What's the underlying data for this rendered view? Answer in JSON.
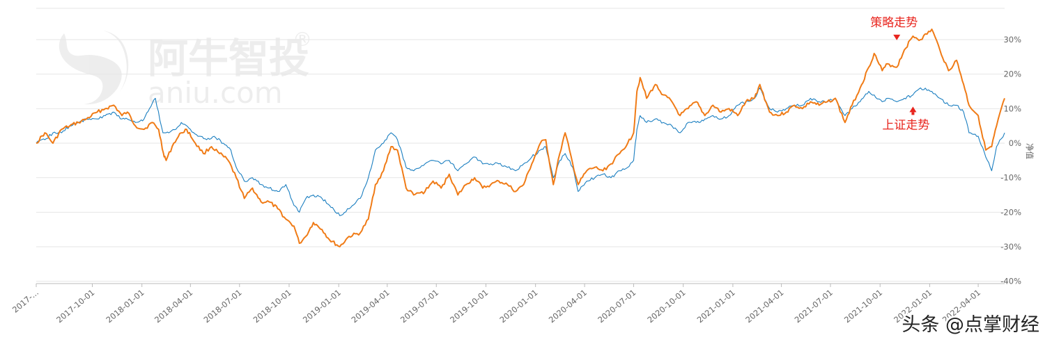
{
  "watermark": {
    "brand": "阿牛智投",
    "registered": "®",
    "domain": "aniu.com"
  },
  "overlay_text": "头条 @点掌财经",
  "chart_data": {
    "type": "line",
    "title": "",
    "xlabel": "",
    "ylabel": "净值",
    "ylim": [
      -40,
      30
    ],
    "y_ticks": [
      30,
      20,
      10,
      0,
      -10,
      -20,
      -30,
      -40
    ],
    "y_tick_labels": [
      "30%",
      "20%",
      "10%",
      "0%",
      "-10%",
      "-20%",
      "-30%",
      "-40%"
    ],
    "x_range": [
      "2017-06-19",
      "2022-05-20"
    ],
    "x_ticks": [
      {
        "date": "2017-06-19",
        "label": "2017-..."
      },
      {
        "date": "2017-10-01",
        "label": "2017-10-01"
      },
      {
        "date": "2018-01-01",
        "label": "2018-01-01"
      },
      {
        "date": "2018-04-01",
        "label": "2018-04-01"
      },
      {
        "date": "2018-07-01",
        "label": "2018-07-01"
      },
      {
        "date": "2018-10-01",
        "label": "2018-10-01"
      },
      {
        "date": "2019-01-01",
        "label": "2019-01-01"
      },
      {
        "date": "2019-04-01",
        "label": "2019-04-01"
      },
      {
        "date": "2019-07-01",
        "label": "2019-07-01"
      },
      {
        "date": "2019-10-01",
        "label": "2019-10-01"
      },
      {
        "date": "2020-01-01",
        "label": "2020-01-01"
      },
      {
        "date": "2020-04-01",
        "label": "2020-04-01"
      },
      {
        "date": "2020-07-01",
        "label": "2020-07-01"
      },
      {
        "date": "2020-10-01",
        "label": "2020-10-01"
      },
      {
        "date": "2021-01-01",
        "label": "2021-01-01"
      },
      {
        "date": "2021-04-01",
        "label": "2021-04-01"
      },
      {
        "date": "2021-07-01",
        "label": "2021-07-01"
      },
      {
        "date": "2021-10-01",
        "label": "2021-10-01"
      },
      {
        "date": "2022-01-01",
        "label": "2022-01-01"
      },
      {
        "date": "2022-04-01",
        "label": "2022-04-01"
      }
    ],
    "grid": true,
    "series": [
      {
        "name": "策略走势",
        "color": "#f07b16",
        "points": [
          [
            "2017-06-19",
            0
          ],
          [
            "2017-07-05",
            3
          ],
          [
            "2017-07-20",
            0
          ],
          [
            "2017-08-05",
            4
          ],
          [
            "2017-08-20",
            5
          ],
          [
            "2017-09-05",
            6
          ],
          [
            "2017-09-20",
            7
          ],
          [
            "2017-10-10",
            9
          ],
          [
            "2017-10-25",
            10
          ],
          [
            "2017-11-10",
            11
          ],
          [
            "2017-11-25",
            8
          ],
          [
            "2017-12-05",
            9
          ],
          [
            "2017-12-20",
            5
          ],
          [
            "2018-01-05",
            4
          ],
          [
            "2018-01-20",
            6
          ],
          [
            "2018-02-01",
            4
          ],
          [
            "2018-02-10",
            -3
          ],
          [
            "2018-02-15",
            -5
          ],
          [
            "2018-03-01",
            0
          ],
          [
            "2018-03-15",
            3
          ],
          [
            "2018-03-25",
            4
          ],
          [
            "2018-04-10",
            0
          ],
          [
            "2018-04-25",
            -3
          ],
          [
            "2018-05-10",
            -1
          ],
          [
            "2018-05-25",
            -3
          ],
          [
            "2018-06-10",
            -5
          ],
          [
            "2018-06-25",
            -10
          ],
          [
            "2018-07-10",
            -16
          ],
          [
            "2018-07-25",
            -13
          ],
          [
            "2018-08-10",
            -17
          ],
          [
            "2018-08-25",
            -17
          ],
          [
            "2018-09-10",
            -19
          ],
          [
            "2018-09-25",
            -22
          ],
          [
            "2018-10-10",
            -24
          ],
          [
            "2018-10-20",
            -29
          ],
          [
            "2018-11-01",
            -27
          ],
          [
            "2018-11-15",
            -23
          ],
          [
            "2018-12-01",
            -25
          ],
          [
            "2018-12-15",
            -28
          ],
          [
            "2019-01-03",
            -30
          ],
          [
            "2019-01-20",
            -27
          ],
          [
            "2019-02-10",
            -26
          ],
          [
            "2019-02-25",
            -22
          ],
          [
            "2019-03-10",
            -12
          ],
          [
            "2019-03-25",
            -8
          ],
          [
            "2019-04-08",
            -1
          ],
          [
            "2019-04-20",
            -2
          ],
          [
            "2019-05-06",
            -13
          ],
          [
            "2019-05-20",
            -15
          ],
          [
            "2019-06-10",
            -14
          ],
          [
            "2019-06-25",
            -11
          ],
          [
            "2019-07-10",
            -13
          ],
          [
            "2019-07-25",
            -9
          ],
          [
            "2019-08-10",
            -15
          ],
          [
            "2019-08-25",
            -12
          ],
          [
            "2019-09-10",
            -10
          ],
          [
            "2019-09-25",
            -13
          ],
          [
            "2019-10-10",
            -12
          ],
          [
            "2019-10-25",
            -11
          ],
          [
            "2019-11-10",
            -12
          ],
          [
            "2019-11-25",
            -14
          ],
          [
            "2019-12-10",
            -12
          ],
          [
            "2019-12-25",
            -6
          ],
          [
            "2020-01-10",
            0
          ],
          [
            "2020-01-20",
            1
          ],
          [
            "2020-02-03",
            -12
          ],
          [
            "2020-02-15",
            -3
          ],
          [
            "2020-02-25",
            3
          ],
          [
            "2020-03-10",
            -6
          ],
          [
            "2020-03-20",
            -12
          ],
          [
            "2020-04-05",
            -8
          ],
          [
            "2020-04-20",
            -7
          ],
          [
            "2020-05-05",
            -8
          ],
          [
            "2020-05-20",
            -6
          ],
          [
            "2020-06-05",
            -3
          ],
          [
            "2020-06-20",
            0
          ],
          [
            "2020-07-01",
            3
          ],
          [
            "2020-07-07",
            15
          ],
          [
            "2020-07-13",
            19
          ],
          [
            "2020-07-25",
            13
          ],
          [
            "2020-08-10",
            17
          ],
          [
            "2020-08-25",
            14
          ],
          [
            "2020-09-10",
            12
          ],
          [
            "2020-09-25",
            8
          ],
          [
            "2020-10-10",
            10
          ],
          [
            "2020-10-25",
            12
          ],
          [
            "2020-11-10",
            8
          ],
          [
            "2020-11-25",
            11
          ],
          [
            "2020-12-10",
            9
          ],
          [
            "2020-12-25",
            10
          ],
          [
            "2021-01-10",
            8
          ],
          [
            "2021-01-25",
            12
          ],
          [
            "2021-02-10",
            13
          ],
          [
            "2021-02-20",
            17
          ],
          [
            "2021-03-10",
            9
          ],
          [
            "2021-03-25",
            8
          ],
          [
            "2021-04-10",
            9
          ],
          [
            "2021-04-25",
            11
          ],
          [
            "2021-05-10",
            10
          ],
          [
            "2021-05-25",
            12
          ],
          [
            "2021-06-10",
            11
          ],
          [
            "2021-06-25",
            12
          ],
          [
            "2021-07-10",
            13
          ],
          [
            "2021-07-28",
            6
          ],
          [
            "2021-08-10",
            11
          ],
          [
            "2021-08-25",
            16
          ],
          [
            "2021-09-10",
            22
          ],
          [
            "2021-09-20",
            26
          ],
          [
            "2021-10-05",
            21
          ],
          [
            "2021-10-15",
            23
          ],
          [
            "2021-11-01",
            22
          ],
          [
            "2021-11-15",
            27
          ],
          [
            "2021-12-01",
            31
          ],
          [
            "2021-12-15",
            30
          ],
          [
            "2022-01-05",
            33
          ],
          [
            "2022-01-20",
            27
          ],
          [
            "2022-02-05",
            21
          ],
          [
            "2022-02-20",
            24
          ],
          [
            "2022-03-05",
            17
          ],
          [
            "2022-03-15",
            11
          ],
          [
            "2022-04-01",
            8
          ],
          [
            "2022-04-15",
            -2
          ],
          [
            "2022-04-26",
            -1
          ],
          [
            "2022-05-05",
            5
          ],
          [
            "2022-05-20",
            13
          ]
        ]
      },
      {
        "name": "上证走势",
        "color": "#1a7ec0",
        "points": [
          [
            "2017-06-19",
            0
          ],
          [
            "2017-07-05",
            1
          ],
          [
            "2017-07-20",
            3
          ],
          [
            "2017-08-05",
            3
          ],
          [
            "2017-08-20",
            5
          ],
          [
            "2017-09-05",
            6
          ],
          [
            "2017-09-20",
            7
          ],
          [
            "2017-10-10",
            7
          ],
          [
            "2017-10-25",
            8
          ],
          [
            "2017-11-10",
            9
          ],
          [
            "2017-11-25",
            7
          ],
          [
            "2017-12-05",
            7
          ],
          [
            "2017-12-20",
            6
          ],
          [
            "2018-01-05",
            7
          ],
          [
            "2018-01-15",
            10
          ],
          [
            "2018-01-26",
            13
          ],
          [
            "2018-02-09",
            3
          ],
          [
            "2018-02-20",
            3
          ],
          [
            "2018-03-05",
            4
          ],
          [
            "2018-03-15",
            6
          ],
          [
            "2018-04-01",
            4
          ],
          [
            "2018-04-15",
            2
          ],
          [
            "2018-05-01",
            1
          ],
          [
            "2018-05-15",
            2
          ],
          [
            "2018-06-01",
            0
          ],
          [
            "2018-06-15",
            -2
          ],
          [
            "2018-06-25",
            -7
          ],
          [
            "2018-07-10",
            -11
          ],
          [
            "2018-07-25",
            -10
          ],
          [
            "2018-08-10",
            -12
          ],
          [
            "2018-08-25",
            -13
          ],
          [
            "2018-09-10",
            -14
          ],
          [
            "2018-09-25",
            -12
          ],
          [
            "2018-10-10",
            -18
          ],
          [
            "2018-10-20",
            -20
          ],
          [
            "2018-11-01",
            -16
          ],
          [
            "2018-11-15",
            -15
          ],
          [
            "2018-12-01",
            -16
          ],
          [
            "2018-12-15",
            -18
          ],
          [
            "2019-01-03",
            -21
          ],
          [
            "2019-01-20",
            -19
          ],
          [
            "2019-02-10",
            -16
          ],
          [
            "2019-02-25",
            -10
          ],
          [
            "2019-03-10",
            -2
          ],
          [
            "2019-03-25",
            0
          ],
          [
            "2019-04-08",
            3
          ],
          [
            "2019-04-20",
            1
          ],
          [
            "2019-05-06",
            -7
          ],
          [
            "2019-05-20",
            -8
          ],
          [
            "2019-06-10",
            -6
          ],
          [
            "2019-06-25",
            -5
          ],
          [
            "2019-07-10",
            -6
          ],
          [
            "2019-07-25",
            -5
          ],
          [
            "2019-08-10",
            -8
          ],
          [
            "2019-08-25",
            -6
          ],
          [
            "2019-09-10",
            -4
          ],
          [
            "2019-09-25",
            -6
          ],
          [
            "2019-10-10",
            -6
          ],
          [
            "2019-10-25",
            -6
          ],
          [
            "2019-11-10",
            -7
          ],
          [
            "2019-11-25",
            -8
          ],
          [
            "2019-12-10",
            -6
          ],
          [
            "2019-12-25",
            -4
          ],
          [
            "2020-01-10",
            -2
          ],
          [
            "2020-01-20",
            -1
          ],
          [
            "2020-02-03",
            -10
          ],
          [
            "2020-02-15",
            -5
          ],
          [
            "2020-02-25",
            -3
          ],
          [
            "2020-03-10",
            -7
          ],
          [
            "2020-03-20",
            -14
          ],
          [
            "2020-04-05",
            -11
          ],
          [
            "2020-04-20",
            -10
          ],
          [
            "2020-05-05",
            -9
          ],
          [
            "2020-05-20",
            -10
          ],
          [
            "2020-06-05",
            -8
          ],
          [
            "2020-06-20",
            -7
          ],
          [
            "2020-07-01",
            -5
          ],
          [
            "2020-07-07",
            4
          ],
          [
            "2020-07-13",
            8
          ],
          [
            "2020-07-25",
            6
          ],
          [
            "2020-08-10",
            7
          ],
          [
            "2020-08-25",
            6
          ],
          [
            "2020-09-10",
            5
          ],
          [
            "2020-09-25",
            3
          ],
          [
            "2020-10-10",
            6
          ],
          [
            "2020-10-25",
            6
          ],
          [
            "2020-11-10",
            7
          ],
          [
            "2020-11-25",
            8
          ],
          [
            "2020-12-10",
            7
          ],
          [
            "2020-12-25",
            8
          ],
          [
            "2021-01-10",
            11
          ],
          [
            "2021-01-25",
            12
          ],
          [
            "2021-02-10",
            13
          ],
          [
            "2021-02-20",
            16
          ],
          [
            "2021-03-10",
            10
          ],
          [
            "2021-03-25",
            9
          ],
          [
            "2021-04-10",
            10
          ],
          [
            "2021-04-25",
            11
          ],
          [
            "2021-05-10",
            11
          ],
          [
            "2021-05-25",
            13
          ],
          [
            "2021-06-10",
            12
          ],
          [
            "2021-06-25",
            12
          ],
          [
            "2021-07-10",
            13
          ],
          [
            "2021-07-28",
            8
          ],
          [
            "2021-08-10",
            10
          ],
          [
            "2021-08-25",
            12
          ],
          [
            "2021-09-10",
            15
          ],
          [
            "2021-09-20",
            14
          ],
          [
            "2021-10-05",
            12
          ],
          [
            "2021-10-15",
            13
          ],
          [
            "2021-11-01",
            12
          ],
          [
            "2021-11-15",
            13
          ],
          [
            "2021-12-01",
            14
          ],
          [
            "2021-12-15",
            16
          ],
          [
            "2022-01-05",
            15
          ],
          [
            "2022-01-20",
            13
          ],
          [
            "2022-02-05",
            11
          ],
          [
            "2022-02-20",
            11
          ],
          [
            "2022-03-05",
            9
          ],
          [
            "2022-03-15",
            3
          ],
          [
            "2022-04-01",
            2
          ],
          [
            "2022-04-15",
            -4
          ],
          [
            "2022-04-26",
            -8
          ],
          [
            "2022-05-05",
            -1
          ],
          [
            "2022-05-20",
            3
          ]
        ]
      }
    ],
    "annotations": [
      {
        "text": "策略走势",
        "series": 0,
        "anchor": [
          "2021-11-01",
          27
        ]
      },
      {
        "text": "上证走势",
        "series": 1,
        "anchor": [
          "2021-12-01",
          11
        ]
      }
    ]
  }
}
